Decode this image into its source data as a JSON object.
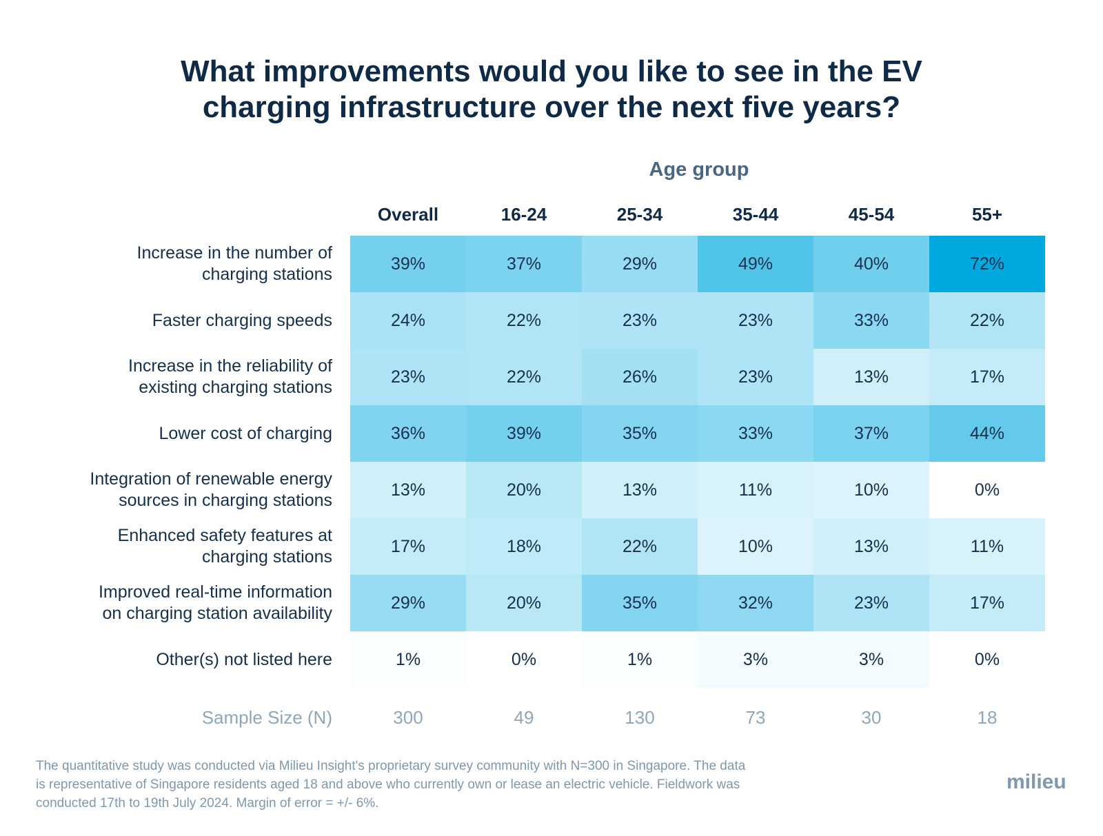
{
  "title": {
    "line1": "What improvements would you like to see in the EV",
    "line2": "charging infrastructure over the next five years?"
  },
  "group_label": "Age group",
  "colors": {
    "scale_low": "#ffffff",
    "scale_high": "#00a9e0",
    "text_dark": "#14304d",
    "muted": "#8fa6b8"
  },
  "chart_data": {
    "type": "heatmap",
    "title": "What improvements would you like to see in the EV charging infrastructure over the next five years?",
    "column_group": "Age group",
    "columns": [
      "Overall",
      "16-24",
      "25-34",
      "35-44",
      "45-54",
      "55+"
    ],
    "rows": [
      {
        "label": [
          "Increase in the number of",
          "charging stations"
        ],
        "values": [
          39,
          37,
          29,
          49,
          40,
          72
        ],
        "display": [
          "39%",
          "37%",
          "29%",
          "49%",
          "40%",
          "72%"
        ]
      },
      {
        "label": [
          "Faster charging speeds"
        ],
        "values": [
          24,
          22,
          23,
          23,
          33,
          22
        ],
        "display": [
          "24%",
          "22%",
          "23%",
          "23%",
          "33%",
          "22%"
        ]
      },
      {
        "label": [
          "Increase in the reliability of",
          "existing charging stations"
        ],
        "values": [
          23,
          22,
          26,
          23,
          13,
          17
        ],
        "display": [
          "23%",
          "22%",
          "26%",
          "23%",
          "13%",
          "17%"
        ]
      },
      {
        "label": [
          "Lower cost of charging"
        ],
        "values": [
          36,
          39,
          35,
          33,
          37,
          44
        ],
        "display": [
          "36%",
          "39%",
          "35%",
          "33%",
          "37%",
          "44%"
        ]
      },
      {
        "label": [
          "Integration of renewable energy",
          "sources in charging stations"
        ],
        "values": [
          13,
          20,
          13,
          11,
          10,
          0
        ],
        "display": [
          "13%",
          "20%",
          "13%",
          "11%",
          "10%",
          "0%"
        ]
      },
      {
        "label": [
          "Enhanced safety features at",
          "charging stations"
        ],
        "values": [
          17,
          18,
          22,
          10,
          13,
          11
        ],
        "display": [
          "17%",
          "18%",
          "22%",
          "10%",
          "13%",
          "11%"
        ]
      },
      {
        "label": [
          "Improved real-time information",
          "on charging station availability"
        ],
        "values": [
          29,
          20,
          35,
          32,
          23,
          17
        ],
        "display": [
          "29%",
          "20%",
          "35%",
          "32%",
          "23%",
          "17%"
        ]
      },
      {
        "label": [
          "Other(s) not listed here"
        ],
        "values": [
          1,
          0,
          1,
          3,
          3,
          0
        ],
        "display": [
          "1%",
          "0%",
          "1%",
          "3%",
          "3%",
          "0%"
        ]
      }
    ],
    "sample_size": {
      "label": "Sample Size (N)",
      "values": [
        "300",
        "49",
        "130",
        "73",
        "30",
        "18"
      ]
    },
    "color_scale_max": 72
  },
  "footnote": {
    "line1": "The quantitative study was conducted via Milieu Insight's proprietary survey community with N=300 in Singapore. The data",
    "line2": "is representative of Singapore residents aged 18 and above who currently own or lease an electric vehicle. Fieldwork was",
    "line3": "conducted 17th to 19th July 2024. Margin of error = +/- 6%."
  },
  "logo_text": "milieu"
}
